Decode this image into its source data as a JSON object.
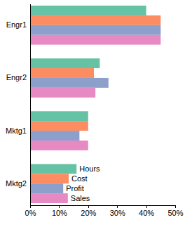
{
  "chart_data": {
    "type": "bar",
    "orientation": "horizontal",
    "categories": [
      "Engr1",
      "Engr2",
      "Mktg1",
      "Mktg2"
    ],
    "series": [
      {
        "name": "Hours",
        "color": "#66c2a5",
        "values": [
          40,
          24,
          20,
          16
        ]
      },
      {
        "name": "Cost",
        "color": "#fc8d62",
        "values": [
          45,
          22,
          20,
          13.3
        ]
      },
      {
        "name": "Profit",
        "color": "#8da0cb",
        "values": [
          45,
          27,
          17,
          11.4
        ]
      },
      {
        "name": "Sales",
        "color": "#e78ac3",
        "values": [
          45,
          22.5,
          20,
          13
        ]
      }
    ],
    "xlim": [
      0,
      50
    ],
    "xticks": [
      {
        "value": 0,
        "label": "0%"
      },
      {
        "value": 10,
        "label": "10%"
      },
      {
        "value": 20,
        "label": "20%"
      },
      {
        "value": 30,
        "label": "30%"
      },
      {
        "value": 40,
        "label": "40%"
      },
      {
        "value": 50,
        "label": "50%"
      }
    ],
    "grid": false,
    "legend": "bottom"
  }
}
